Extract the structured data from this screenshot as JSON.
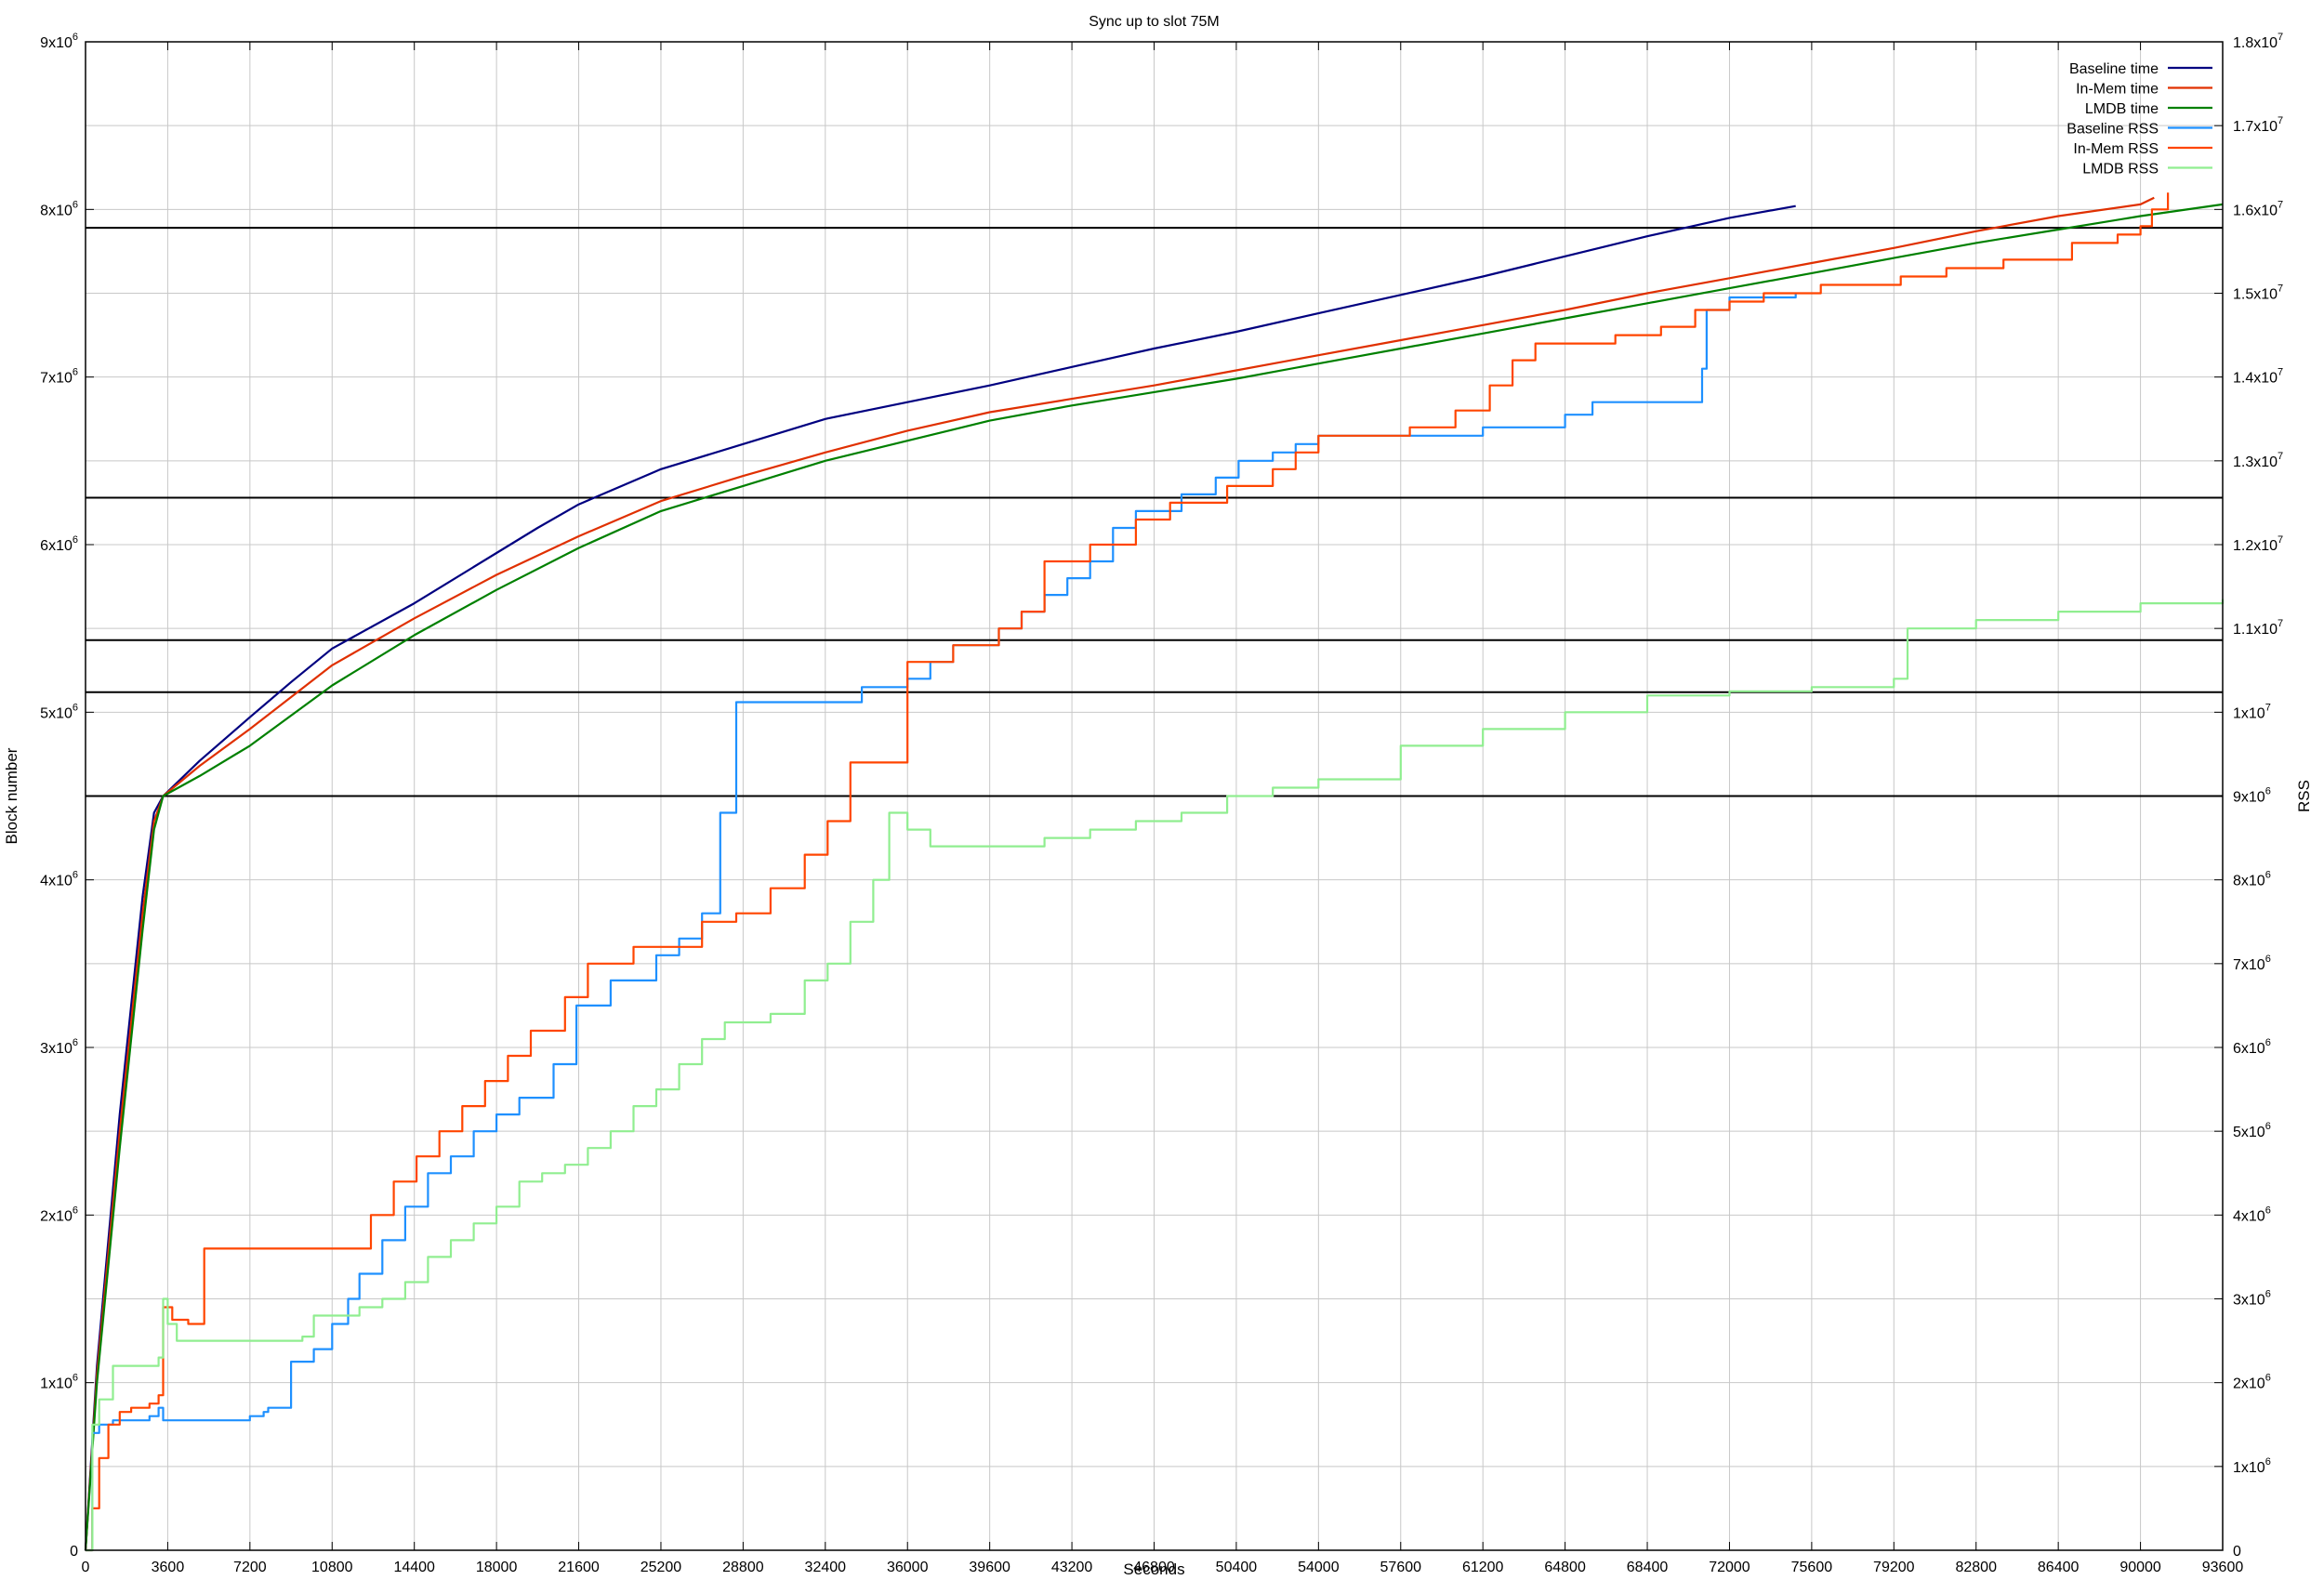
{
  "chart_data": {
    "type": "line",
    "title": "Sync up to slot 75M",
    "xlabel": "Seconds",
    "ylabel": "Block number",
    "y2label": "RSS",
    "xlim": [
      0,
      93600
    ],
    "ylim": [
      0,
      9000000
    ],
    "y2lim": [
      0,
      18000000
    ],
    "grid": true,
    "legend_position": "top-right",
    "x_ticks": [
      "0",
      "3600",
      "7200",
      "10800",
      "14400",
      "18000",
      "21600",
      "25200",
      "28800",
      "32400",
      "36000",
      "39600",
      "43200",
      "46800",
      "50400",
      "54000",
      "57600",
      "61200",
      "64800",
      "68400",
      "72000",
      "75600",
      "79200",
      "82800",
      "86400",
      "90000",
      "93600"
    ],
    "y_ticks": [
      {
        "base": "0",
        "exp": ""
      },
      {
        "base": "1x10",
        "exp": "6"
      },
      {
        "base": "2x10",
        "exp": "6"
      },
      {
        "base": "3x10",
        "exp": "6"
      },
      {
        "base": "4x10",
        "exp": "6"
      },
      {
        "base": "5x10",
        "exp": "6"
      },
      {
        "base": "6x10",
        "exp": "6"
      },
      {
        "base": "7x10",
        "exp": "6"
      },
      {
        "base": "8x10",
        "exp": "6"
      },
      {
        "base": "9x10",
        "exp": "6"
      }
    ],
    "y2_ticks": [
      {
        "base": "0",
        "exp": ""
      },
      {
        "base": "1x10",
        "exp": "6"
      },
      {
        "base": "2x10",
        "exp": "6"
      },
      {
        "base": "3x10",
        "exp": "6"
      },
      {
        "base": "4x10",
        "exp": "6"
      },
      {
        "base": "5x10",
        "exp": "6"
      },
      {
        "base": "6x10",
        "exp": "6"
      },
      {
        "base": "7x10",
        "exp": "6"
      },
      {
        "base": "8x10",
        "exp": "6"
      },
      {
        "base": "9x10",
        "exp": "6"
      },
      {
        "base": "1x10",
        "exp": "7"
      },
      {
        "base": "1.1x10",
        "exp": "7"
      },
      {
        "base": "1.2x10",
        "exp": "7"
      },
      {
        "base": "1.3x10",
        "exp": "7"
      },
      {
        "base": "1.4x10",
        "exp": "7"
      },
      {
        "base": "1.5x10",
        "exp": "7"
      },
      {
        "base": "1.6x10",
        "exp": "7"
      },
      {
        "base": "1.7x10",
        "exp": "7"
      },
      {
        "base": "1.8x10",
        "exp": "7"
      }
    ],
    "hlines_y": [
      4500000,
      5120000,
      5430000,
      6280000,
      7890000
    ],
    "series": [
      {
        "name": "Baseline time",
        "axis": "y1",
        "color": "#000080",
        "step": false,
        "x": [
          0,
          500,
          1500,
          2500,
          3000,
          3400,
          5000,
          7200,
          9000,
          10800,
          14400,
          18000,
          19800,
          21600,
          25200,
          28800,
          32400,
          36000,
          39600,
          43200,
          46800,
          50400,
          54000,
          57600,
          61200,
          64800,
          68400,
          72000,
          74900
        ],
        "y": [
          0,
          1100000,
          2600000,
          3900000,
          4400000,
          4500000,
          4710000,
          4970000,
          5180000,
          5380000,
          5650000,
          5950000,
          6100000,
          6240000,
          6450000,
          6600000,
          6750000,
          6850000,
          6950000,
          7060000,
          7170000,
          7270000,
          7380000,
          7490000,
          7600000,
          7720000,
          7840000,
          7950000,
          8020000
        ]
      },
      {
        "name": "In-Mem time",
        "axis": "y1",
        "color": "#e03000",
        "step": false,
        "x": [
          0,
          500,
          1500,
          2500,
          3000,
          3400,
          5000,
          7200,
          10800,
          14400,
          18000,
          21600,
          25200,
          28800,
          32400,
          36000,
          39600,
          43200,
          46800,
          50400,
          54000,
          57600,
          61200,
          64800,
          68400,
          72000,
          75600,
          79200,
          82800,
          86400,
          90000,
          90600
        ],
        "y": [
          0,
          1050000,
          2500000,
          3800000,
          4350000,
          4500000,
          4680000,
          4900000,
          5280000,
          5560000,
          5820000,
          6050000,
          6260000,
          6410000,
          6550000,
          6680000,
          6790000,
          6870000,
          6950000,
          7040000,
          7130000,
          7220000,
          7310000,
          7400000,
          7500000,
          7590000,
          7680000,
          7770000,
          7870000,
          7960000,
          8030000,
          8070000
        ]
      },
      {
        "name": "LMDB time",
        "axis": "y1",
        "color": "#008000",
        "step": false,
        "x": [
          0,
          500,
          1500,
          2500,
          3000,
          3400,
          5000,
          7200,
          10800,
          14400,
          18000,
          21600,
          25200,
          28800,
          32400,
          36000,
          39600,
          43200,
          46800,
          50400,
          54000,
          57600,
          61200,
          64800,
          68400,
          72000,
          75600,
          79200,
          82800,
          86400,
          90000,
          93600
        ],
        "y": [
          0,
          1000000,
          2400000,
          3700000,
          4300000,
          4500000,
          4620000,
          4800000,
          5160000,
          5460000,
          5730000,
          5980000,
          6200000,
          6350000,
          6500000,
          6620000,
          6740000,
          6830000,
          6910000,
          6990000,
          7080000,
          7170000,
          7260000,
          7350000,
          7440000,
          7530000,
          7620000,
          7710000,
          7800000,
          7880000,
          7960000,
          8030000
        ]
      },
      {
        "name": "Baseline RSS",
        "axis": "y2",
        "color": "#1e90ff",
        "step": true,
        "x": [
          0,
          300,
          600,
          1200,
          2000,
          2800,
          3200,
          3400,
          3600,
          6500,
          7200,
          7800,
          8000,
          9000,
          10000,
          10800,
          11500,
          12000,
          13000,
          14000,
          15000,
          16000,
          17000,
          18000,
          19000,
          20500,
          21500,
          23000,
          25000,
          26000,
          27000,
          27800,
          28500,
          32400,
          34000,
          36000,
          37000,
          38000,
          40000,
          41000,
          42000,
          43000,
          44000,
          45000,
          46000,
          48000,
          49500,
          50500,
          52000,
          53000,
          54000,
          57600,
          61200,
          64800,
          66000,
          67500,
          70800,
          71000,
          72000,
          74900
        ],
        "y": [
          0,
          1400000,
          1500000,
          1550000,
          1550000,
          1600000,
          1700000,
          1550000,
          1550000,
          1550000,
          1600000,
          1650000,
          1700000,
          2250000,
          2400000,
          2700000,
          3000000,
          3300000,
          3700000,
          4100000,
          4500000,
          4700000,
          5000000,
          5200000,
          5400000,
          5800000,
          6500000,
          6800000,
          7100000,
          7300000,
          7600000,
          8800000,
          10120000,
          10120000,
          10300000,
          10400000,
          10600000,
          10800000,
          11000000,
          11200000,
          11400000,
          11600000,
          11800000,
          12200000,
          12400000,
          12600000,
          12800000,
          13000000,
          13100000,
          13200000,
          13300000,
          13300000,
          13400000,
          13550000,
          13700000,
          13700000,
          14100000,
          14800000,
          14950000,
          15000000
        ]
      },
      {
        "name": "In-Mem RSS",
        "axis": "y2",
        "color": "#ff4500",
        "step": true,
        "x": [
          0,
          300,
          600,
          1000,
          1500,
          2000,
          2800,
          3200,
          3400,
          3800,
          4500,
          5200,
          11800,
          12500,
          13500,
          14500,
          15500,
          16500,
          17500,
          18500,
          19500,
          21000,
          22000,
          24000,
          27000,
          28500,
          30000,
          31500,
          32500,
          33500,
          36000,
          38000,
          40000,
          41000,
          42000,
          44000,
          46000,
          47500,
          50000,
          52000,
          53000,
          54000,
          58000,
          60000,
          61500,
          62500,
          63500,
          67000,
          69000,
          70500,
          72000,
          73500,
          76000,
          79500,
          81500,
          84000,
          87000,
          89000,
          90000,
          90500,
          91200
        ],
        "y": [
          0,
          500000,
          1100000,
          1500000,
          1650000,
          1700000,
          1750000,
          1850000,
          2900000,
          2750000,
          2700000,
          3600000,
          3600000,
          4000000,
          4400000,
          4700000,
          5000000,
          5300000,
          5600000,
          5900000,
          6200000,
          6600000,
          7000000,
          7200000,
          7500000,
          7600000,
          7900000,
          8300000,
          8700000,
          9400000,
          10600000,
          10800000,
          11000000,
          11200000,
          11800000,
          12000000,
          12300000,
          12500000,
          12700000,
          12900000,
          13100000,
          13300000,
          13400000,
          13600000,
          13900000,
          14200000,
          14400000,
          14500000,
          14600000,
          14800000,
          14900000,
          15000000,
          15100000,
          15200000,
          15300000,
          15400000,
          15600000,
          15700000,
          15800000,
          16000000,
          16200000
        ]
      },
      {
        "name": "LMDB RSS",
        "axis": "y2",
        "color": "#90ee90",
        "step": true,
        "x": [
          0,
          300,
          600,
          1200,
          2000,
          2800,
          3200,
          3400,
          3600,
          4000,
          8500,
          9500,
          10000,
          11000,
          12000,
          13000,
          14000,
          15000,
          16000,
          17000,
          18000,
          19000,
          20000,
          21000,
          22000,
          23000,
          24000,
          25000,
          26000,
          27000,
          28000,
          30000,
          31500,
          32500,
          33500,
          34500,
          35200,
          36000,
          37000,
          40000,
          42000,
          44000,
          46000,
          48000,
          50000,
          52000,
          54000,
          57600,
          61200,
          64800,
          68400,
          72000,
          75600,
          79200,
          79800,
          82800,
          86400,
          90000,
          93600
        ],
        "y": [
          0,
          1500000,
          1800000,
          2200000,
          2200000,
          2200000,
          2300000,
          3000000,
          2700000,
          2500000,
          2500000,
          2550000,
          2800000,
          2800000,
          2900000,
          3000000,
          3200000,
          3500000,
          3700000,
          3900000,
          4100000,
          4400000,
          4500000,
          4600000,
          4800000,
          5000000,
          5300000,
          5500000,
          5800000,
          6100000,
          6300000,
          6400000,
          6800000,
          7000000,
          7500000,
          8000000,
          8800000,
          8600000,
          8400000,
          8400000,
          8500000,
          8600000,
          8700000,
          8800000,
          9000000,
          9100000,
          9200000,
          9600000,
          9800000,
          10000000,
          10200000,
          10250000,
          10300000,
          10400000,
          11000000,
          11100000,
          11200000,
          11300000,
          11350000
        ]
      }
    ]
  }
}
